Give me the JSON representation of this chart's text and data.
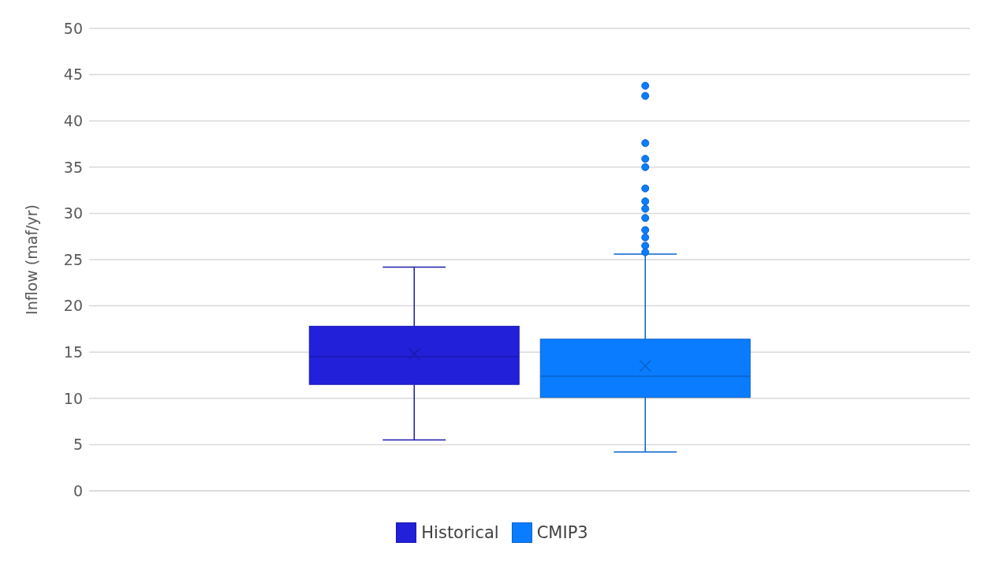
{
  "chart_data": {
    "type": "box",
    "ylabel": "Inflow (maf/yr)",
    "categories": [
      null
    ],
    "ylim": [
      0,
      50
    ],
    "yticks": [
      0,
      5,
      10,
      15,
      20,
      25,
      30,
      35,
      40,
      45,
      50
    ],
    "grid": "y",
    "legend": "bottom",
    "tick_labels": "y",
    "series": [
      {
        "name": "Historical",
        "color": "#2320d9",
        "boxes": [
          {
            "low": 5.5,
            "q1": 11.5,
            "median": 14.5,
            "q3": 17.8,
            "high": 24.2,
            "mean": 14.8
          }
        ]
      },
      {
        "name": "CMIP3",
        "color": "#0a7cff",
        "boxes": [
          {
            "low": 4.2,
            "q1": 10.1,
            "median": 12.4,
            "q3": 16.4,
            "high": 25.6,
            "mean": 13.5,
            "outliers": [
              43.8,
              42.7,
              37.6,
              35.9,
              35.0,
              32.7,
              31.3,
              30.5,
              29.5,
              28.2,
              27.4,
              26.5,
              25.8
            ]
          }
        ]
      }
    ]
  }
}
